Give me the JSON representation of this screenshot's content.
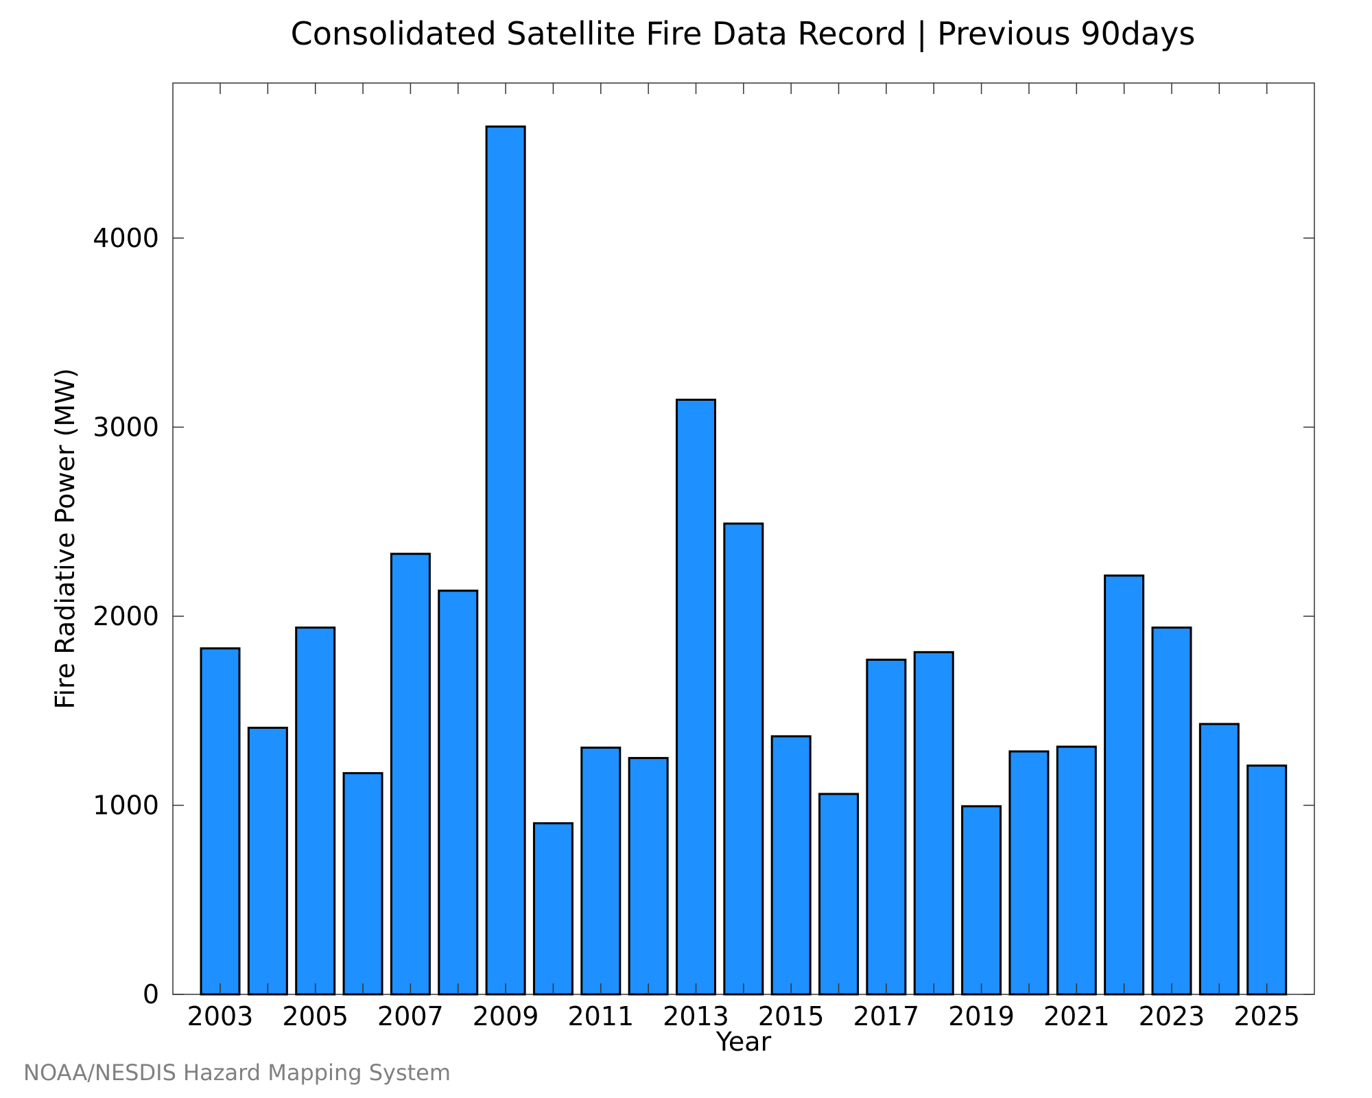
{
  "chart_data": {
    "type": "bar",
    "title": "Consolidated Satellite Fire Data Record | Previous 90days",
    "xlabel": "Year",
    "ylabel": "Fire Radiative Power (MW)",
    "categories": [
      "2003",
      "2004",
      "2005",
      "2006",
      "2007",
      "2008",
      "2009",
      "2010",
      "2011",
      "2012",
      "2013",
      "2014",
      "2015",
      "2016",
      "2017",
      "2018",
      "2019",
      "2020",
      "2021",
      "2022",
      "2023",
      "2024",
      "2025"
    ],
    "values": [
      1830,
      1410,
      1940,
      1170,
      2330,
      2135,
      4590,
      905,
      1305,
      1250,
      3145,
      2490,
      1365,
      1060,
      1770,
      1810,
      995,
      1285,
      1310,
      2215,
      1940,
      1430,
      1210
    ],
    "x_tick_labels": [
      "2003",
      "2005",
      "2007",
      "2009",
      "2011",
      "2013",
      "2015",
      "2017",
      "2019",
      "2021",
      "2023",
      "2025"
    ],
    "y_ticks": [
      0,
      1000,
      2000,
      3000,
      4000
    ],
    "ylim": [
      0,
      4820
    ],
    "grid": false,
    "legend": "none",
    "bar_color": "#1E90FF",
    "bar_edge_color": "#000000",
    "credit": "NOAA/NESDIS Hazard Mapping System"
  }
}
